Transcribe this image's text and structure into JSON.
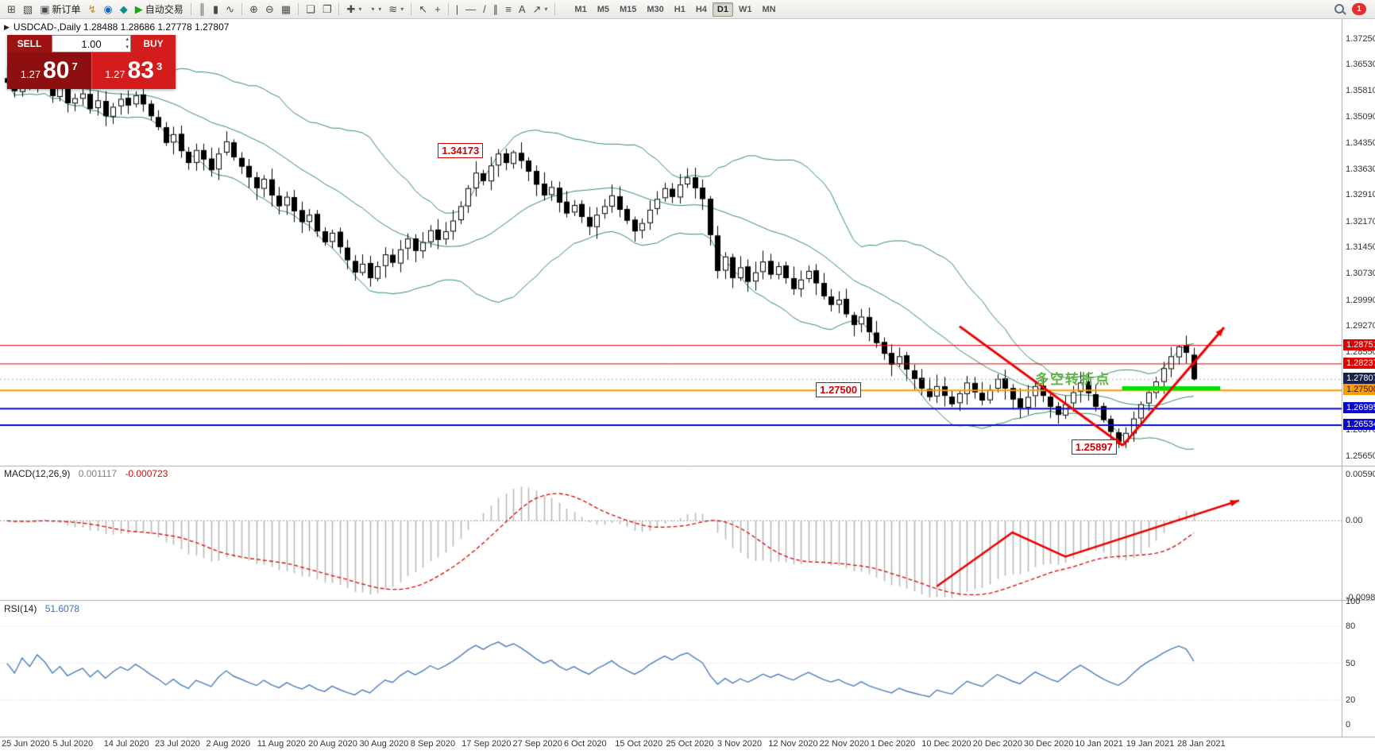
{
  "toolbar": {
    "notification_count": "1",
    "buttons": [
      {
        "name": "new-chart-button",
        "glyph": "⊞"
      },
      {
        "name": "profiles-button",
        "glyph": "▧"
      },
      {
        "name": "new-order-button",
        "glyph": "▣",
        "label": "新订单"
      },
      {
        "name": "alert-button",
        "glyph": "↯",
        "color": "#c8860a"
      },
      {
        "name": "community-button",
        "glyph": "◉",
        "color": "#1768c6"
      },
      {
        "name": "mql5-button",
        "glyph": "◆",
        "color": "#0e8f8f"
      },
      {
        "name": "autotrading-button",
        "glyph": "▶",
        "label": "自动交易",
        "color": "#1ca31c"
      },
      {
        "sep": true
      },
      {
        "name": "bars-chart-type-button",
        "glyph": "║"
      },
      {
        "name": "candles-chart-type-button",
        "glyph": "▮"
      },
      {
        "name": "line-chart-type-button",
        "glyph": "∿"
      },
      {
        "sep": true
      },
      {
        "name": "zoom-in-button",
        "glyph": "⊕"
      },
      {
        "name": "zoom-out-button",
        "glyph": "⊖"
      },
      {
        "name": "tile-windows-button",
        "glyph": "▦"
      },
      {
        "sep": true
      },
      {
        "name": "auto-scroll-button",
        "glyph": "❏"
      },
      {
        "name": "chart-shift-button",
        "glyph": "❐"
      },
      {
        "sep": true
      },
      {
        "name": "new-chart-dropdown-button",
        "glyph": "✚",
        "dropdown": true
      },
      {
        "name": "periods-dropdown-button",
        "glyph": "◔",
        "dropdown": true
      },
      {
        "name": "indicators-dropdown-button",
        "glyph": "≋",
        "dropdown": true
      },
      {
        "sep": true
      },
      {
        "name": "cursor-button",
        "glyph": "↖"
      },
      {
        "name": "crosshair-button",
        "glyph": "+"
      },
      {
        "sep": true
      },
      {
        "name": "vertical-line-button",
        "glyph": "|"
      },
      {
        "name": "horizontal-line-button",
        "gl yph": "—",
        "glyph": "—"
      },
      {
        "name": "trendline-button",
        "glyph": "/"
      },
      {
        "name": "channel-button",
        "glyph": "∥"
      },
      {
        "name": "fibonacci-button",
        "glyph": "≡"
      },
      {
        "name": "text-label-button",
        "glyph": "A"
      },
      {
        "name": "arrows-tool-button",
        "glyph": "↗",
        "dropdown": true
      },
      {
        "sep": true
      }
    ],
    "timeframes": [
      {
        "label": "M1"
      },
      {
        "label": "M5"
      },
      {
        "label": "M15"
      },
      {
        "label": "M30"
      },
      {
        "label": "H1"
      },
      {
        "label": "H4"
      },
      {
        "label": "D1",
        "active": true
      },
      {
        "label": "W1"
      },
      {
        "label": "MN"
      }
    ]
  },
  "chart": {
    "info_line": "USDCAD-,Daily 1.28488 1.28686 1.27778 1.27807"
  },
  "trade_panel": {
    "sell_label": "SELL",
    "buy_label": "BUY",
    "volume": "1.00",
    "sell_price": {
      "prefix": "1.27",
      "big": "80",
      "sup": "7"
    },
    "buy_price": {
      "prefix": "1.27",
      "big": "83",
      "sup": "3"
    }
  },
  "chart_data": {
    "type": "candlestick",
    "symbol": "USDCAD-",
    "timeframe": "Daily",
    "ohlc_info": {
      "open": "1.28488",
      "high": "1.28686",
      "low": "1.27778",
      "close": "1.27807"
    },
    "y_axis": {
      "visible_range": {
        "top": 1.3762,
        "bottom": 1.2534
      },
      "ticks": [
        "1.37250",
        "1.36530",
        "1.35810",
        "1.35090",
        "1.34350",
        "1.33630",
        "1.32910",
        "1.32170",
        "1.31450",
        "1.30730",
        "1.29990",
        "1.29270",
        "1.28550",
        "1.26370",
        "1.25650"
      ],
      "badges": [
        {
          "label": "1.28751",
          "value": 1.28751,
          "bg": "#e00000"
        },
        {
          "label": "1.28237",
          "value": 1.28237,
          "bg": "#e00000"
        },
        {
          "label": "1.27807",
          "value": 1.27807,
          "bg": "#16214e"
        },
        {
          "label": "1.27500",
          "value": 1.275,
          "bg": "#ff9900",
          "fg": "#1a1a1a"
        },
        {
          "label": "1.26995",
          "value": 1.26995,
          "bg": "#0a0acc"
        },
        {
          "label": "1.26534",
          "value": 1.26534,
          "bg": "#0a0acc"
        }
      ]
    },
    "x_axis": {
      "labels": [
        "25 Jun 2020",
        "5 Jul 2020",
        "14 Jul 2020",
        "23 Jul 2020",
        "2 Aug 2020",
        "11 Aug 2020",
        "20 Aug 2020",
        "30 Aug 2020",
        "8 Sep 2020",
        "17 Sep 2020",
        "27 Sep 2020",
        "6 Oct 2020",
        "15 Oct 2020",
        "25 Oct 2020",
        "3 Nov 2020",
        "12 Nov 2020",
        "22 Nov 2020",
        "1 Dec 2020",
        "10 Dec 2020",
        "20 Dec 2020",
        "30 Dec 2020",
        "10 Jan 2021",
        "19 Jan 2021",
        "28 Jan 2021"
      ]
    },
    "candles": {
      "note": "approximate daily closes traced from chart",
      "closes": [
        1.3605,
        1.3582,
        1.3618,
        1.3595,
        1.3632,
        1.361,
        1.3568,
        1.359,
        1.3548,
        1.3562,
        1.3575,
        1.3532,
        1.3556,
        1.3512,
        1.3538,
        1.356,
        1.3542,
        1.357,
        1.3545,
        1.3512,
        1.3482,
        1.3438,
        1.3462,
        1.3415,
        1.3382,
        1.3418,
        1.3392,
        1.3362,
        1.3408,
        1.3442,
        1.3398,
        1.3372,
        1.3342,
        1.3312,
        1.3338,
        1.3292,
        1.3262,
        1.3288,
        1.3248,
        1.3218,
        1.3238,
        1.3192,
        1.3162,
        1.3188,
        1.3148,
        1.3112,
        1.3078,
        1.3102,
        1.3062,
        1.3095,
        1.3128,
        1.3105,
        1.3142,
        1.3172,
        1.3138,
        1.3162,
        1.3195,
        1.3168,
        1.3192,
        1.3222,
        1.3262,
        1.3312,
        1.3355,
        1.3332,
        1.3375,
        1.3408,
        1.3382,
        1.3412,
        1.3388,
        1.3358,
        1.3322,
        1.3292,
        1.3315,
        1.3272,
        1.3242,
        1.3265,
        1.3232,
        1.3205,
        1.3238,
        1.3262,
        1.3292,
        1.3252,
        1.3222,
        1.3192,
        1.3215,
        1.3252,
        1.3282,
        1.3312,
        1.3288,
        1.3322,
        1.3342,
        1.3312,
        1.3282,
        1.3182,
        1.3082,
        1.3122,
        1.3062,
        1.3092,
        1.3052,
        1.3078,
        1.3108,
        1.3072,
        1.3095,
        1.3062,
        1.3032,
        1.3058,
        1.3082,
        1.3048,
        1.3012,
        1.2988,
        1.3002,
        1.2962,
        1.2932,
        1.2955,
        1.2912,
        1.2882,
        1.2852,
        1.2822,
        1.2845,
        1.2808,
        1.2782,
        1.2755,
        1.2732,
        1.2762,
        1.2735,
        1.2712,
        1.2742,
        1.2772,
        1.2745,
        1.2722,
        1.2752,
        1.2782,
        1.2755,
        1.2725,
        1.2702,
        1.2732,
        1.2762,
        1.2735,
        1.2705,
        1.2682,
        1.2712,
        1.2745,
        1.2772,
        1.2742,
        1.2705,
        1.2668,
        1.2635,
        1.2608,
        1.2632,
        1.2672,
        1.2712,
        1.2745,
        1.2775,
        1.2812,
        1.2845,
        1.2872,
        1.2855,
        1.27807
      ]
    },
    "candle_overrides": {
      "67": {
        "h": 1.34173
      },
      "147": {
        "l": 1.25897
      },
      "155": {
        "h": 1.28751
      },
      "157": {
        "o": 1.28488,
        "h": 1.28686,
        "l": 1.27778,
        "c": 1.27807
      }
    },
    "styles": {
      "up_fill": "#ffffff",
      "down_fill": "#000000",
      "outline": "#000000"
    },
    "bollinger": {
      "period": 20,
      "deviation": 2,
      "color": "#2f9160"
    },
    "levels": [
      {
        "price": 1.28751,
        "color": "#e00000",
        "width": 1
      },
      {
        "price": 1.28237,
        "color": "#e00000",
        "width": 1
      },
      {
        "price": 1.275,
        "color": "#ff9900",
        "width": 2
      },
      {
        "price": 1.26995,
        "color": "#0a0acc",
        "width": 2
      },
      {
        "price": 1.26534,
        "color": "#0a0acc",
        "width": 2
      }
    ],
    "current_price_line": {
      "price": 1.27807,
      "color": "#b0b0b0"
    },
    "green_segment": {
      "bar_from": 147.5,
      "bar_to": 160.5,
      "price": 1.2756,
      "color": "#00e000",
      "width": 5
    },
    "trend_arrows": [
      {
        "points": [
          [
            126,
            1.2928
          ],
          [
            147.6,
            1.2597
          ]
        ],
        "color": "#ee0000",
        "width": 3
      },
      {
        "points": [
          [
            147.6,
            1.2597
          ],
          [
            161,
            1.2925
          ]
        ],
        "color": "#ee0000",
        "width": 3
      }
    ],
    "callouts": [
      {
        "label": "1.34173",
        "bar": 57,
        "price": 1.3415
      },
      {
        "label": "1.27500",
        "bar": 107,
        "price": 1.275
      },
      {
        "label": "1.25897",
        "bar": 140.8,
        "price": 1.2592
      }
    ],
    "annotation_text": {
      "text": "多空转折点",
      "bar": 136,
      "price": 1.279,
      "color": "#5fb347"
    },
    "macd": {
      "label": "MACD(12,26,9)",
      "value": "0.001117",
      "signal": "-0.000723",
      "fast": 12,
      "slow": 26,
      "signal_period": 9,
      "scale_labels": [
        "0.005908",
        "0.00",
        "-0.009851"
      ],
      "scale_max": 0.005908,
      "scale_min": -0.009851,
      "histogram_color": "#b8b8b8",
      "signal_color": "#e00000",
      "arrow": {
        "points": [
          [
            123,
            -0.0084
          ],
          [
            133,
            -0.0015
          ],
          [
            140,
            -0.0046
          ],
          [
            163,
            0.0026
          ]
        ],
        "color": "#ee0000",
        "width": 2.5
      }
    },
    "rsi": {
      "label": "RSI(14)",
      "value": "51.6078",
      "period": 14,
      "scale_labels": [
        100,
        80,
        50,
        20,
        0
      ],
      "dotted_levels": [
        80,
        50,
        20
      ],
      "color": "#4a7ebb"
    }
  }
}
